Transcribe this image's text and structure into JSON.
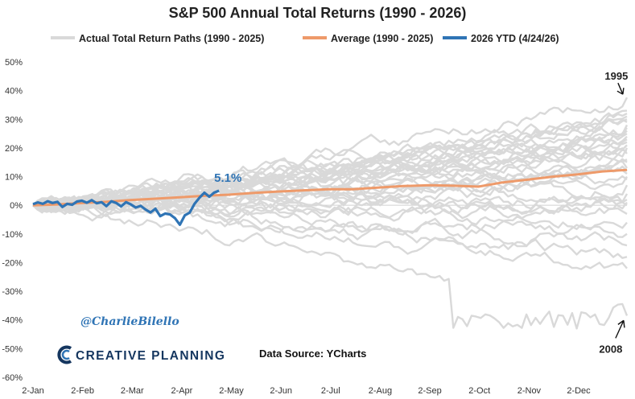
{
  "chart_data": {
    "type": "line",
    "title": "S&P 500 Annual Total Returns (1990 - 2026)",
    "legend": [
      {
        "label": "Actual Total Return Paths (1990 - 2025)",
        "color": "#d9d9d9"
      },
      {
        "label": "Average (1990 - 2025)",
        "color": "#ee9a6a"
      },
      {
        "label": "2026 YTD (4/24/26)",
        "color": "#2f74b5"
      }
    ],
    "legend_position": "top",
    "x_ticks": [
      "2-Jan",
      "2-Feb",
      "2-Mar",
      "2-Apr",
      "2-May",
      "2-Jun",
      "2-Jul",
      "2-Aug",
      "2-Sep",
      "2-Oct",
      "2-Nov",
      "2-Dec"
    ],
    "y_ticks": [
      "50%",
      "40%",
      "30%",
      "20%",
      "10%",
      "0%",
      "-10%",
      "-20%",
      "-30%",
      "-40%",
      "-50%",
      "-60%"
    ],
    "ylim": [
      -60,
      50
    ],
    "grid": false,
    "series": [
      {
        "name": "Average (1990 - 2025)",
        "color": "#ee9a6a",
        "x": [
          0,
          15,
          31,
          45,
          59,
          75,
          90,
          105,
          120,
          135,
          150,
          165,
          181,
          196,
          212,
          227,
          243,
          258,
          273,
          288,
          304,
          319,
          334,
          349,
          364
        ],
        "y": [
          0,
          0.3,
          0.8,
          1.2,
          1.8,
          2.3,
          2.8,
          3.3,
          3.7,
          4.3,
          4.8,
          5.2,
          5.6,
          5.6,
          6.2,
          6.7,
          7.0,
          6.8,
          6.5,
          8.0,
          9.0,
          10.0,
          10.8,
          11.8,
          12.3
        ]
      },
      {
        "name": "2026 YTD (4/24/26)",
        "color": "#2f74b5",
        "x": [
          0,
          3,
          6,
          9,
          12,
          15,
          18,
          21,
          24,
          27,
          30,
          33,
          36,
          39,
          42,
          45,
          48,
          51,
          54,
          57,
          60,
          63,
          66,
          69,
          72,
          75,
          78,
          81,
          84,
          87,
          90,
          93,
          96,
          99,
          102,
          105,
          108,
          111,
          114
        ],
        "y": [
          0.4,
          1.0,
          0.5,
          1.4,
          0.8,
          1.2,
          -0.6,
          0.5,
          0.2,
          1.3,
          1.6,
          0.9,
          1.8,
          0.7,
          1.1,
          -0.3,
          1.4,
          0.8,
          -0.4,
          1.1,
          0.3,
          -0.8,
          -0.2,
          -1.5,
          -2.5,
          -1.2,
          -3.8,
          -2.9,
          -3.2,
          -4.5,
          -6.8,
          -3.5,
          -2.6,
          0.5,
          2.6,
          4.4,
          3.0,
          4.4,
          5.1
        ]
      }
    ],
    "annotations": [
      {
        "text": "5.1%",
        "x": 114,
        "y": 5.1
      },
      {
        "text": "1995",
        "x": 360,
        "y": 37.6
      },
      {
        "text": "2008",
        "x": 360,
        "y": -38.5
      }
    ]
  },
  "watermark": {
    "handle": "@CharlieBilello",
    "brand": "CREATIVE PLANNING",
    "source": "Data Source: YCharts"
  },
  "colors": {
    "paths": "#d9d9d9",
    "average": "#ee9a6a",
    "ytd": "#2f74b5",
    "brand": "#15365f"
  }
}
